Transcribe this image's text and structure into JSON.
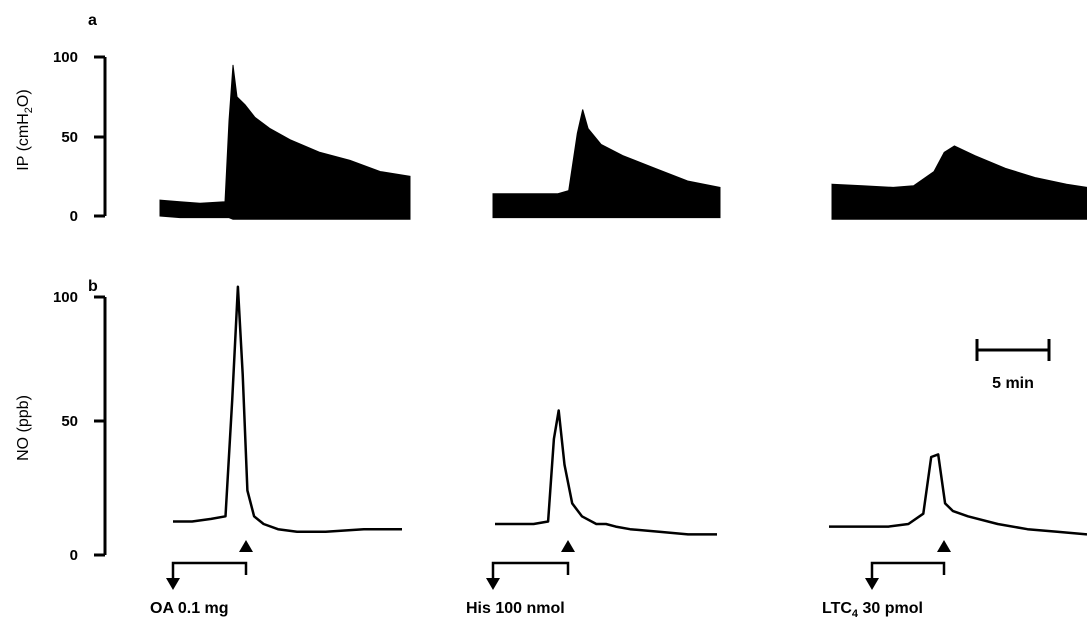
{
  "chart_data": [
    {
      "panel": "a",
      "type": "line",
      "ylabel": "IP (cmH2O)",
      "ylabel_main": "IP (cmH",
      "ylabel_sub": "2",
      "ylabel_end": "O)",
      "ylim": [
        0,
        100
      ],
      "yticks": [
        "0",
        "50",
        "100"
      ],
      "yticks_values": [
        0,
        50,
        100
      ],
      "style": "filled oscillating pressure trace",
      "series": [
        {
          "challenge": "OA 0.1 mg",
          "x": [
            0,
            2,
            4,
            6.5,
            6.9,
            7.3,
            7.7,
            8.5,
            9.5,
            11,
            13,
            16,
            19,
            22,
            25
          ],
          "upper": [
            10,
            9,
            8,
            9,
            60,
            95,
            75,
            70,
            62,
            55,
            48,
            40,
            35,
            28,
            25
          ],
          "lower": [
            0,
            -1,
            -1,
            -1,
            -1,
            -2,
            -2,
            -2,
            -2,
            -2,
            -2,
            -2,
            -2,
            -2,
            -2
          ]
        },
        {
          "challenge": "His 100 nmol",
          "x": [
            0,
            3,
            6,
            7,
            7.8,
            8.3,
            8.8,
            10,
            12,
            15,
            18,
            21
          ],
          "upper": [
            14,
            14,
            14,
            16,
            52,
            67,
            55,
            45,
            38,
            30,
            22,
            18
          ],
          "lower": [
            -1,
            -1,
            -1,
            -1,
            -1,
            -1,
            -1,
            -1,
            -1,
            -1,
            -1,
            -1
          ]
        },
        {
          "challenge": "LTC4 30 pmol",
          "x": [
            0,
            3,
            6,
            8,
            10,
            11,
            12,
            14,
            17,
            20,
            23,
            25
          ],
          "upper": [
            20,
            19,
            18,
            19,
            28,
            40,
            44,
            38,
            30,
            24,
            20,
            18
          ],
          "lower": [
            -2,
            -2,
            -2,
            -2,
            -2,
            -2,
            -2,
            -2,
            -2,
            -2,
            -2,
            -2
          ]
        }
      ]
    },
    {
      "panel": "b",
      "type": "line",
      "ylabel": "NO (ppb)",
      "ylim": [
        0,
        100
      ],
      "yticks": [
        "0",
        "50",
        "100"
      ],
      "yticks_values": [
        0,
        50,
        100
      ],
      "scale_bar": "5 min",
      "series": [
        {
          "challenge": "OA 0.1 mg",
          "x": [
            0,
            2,
            4,
            5.5,
            6.2,
            6.8,
            7.3,
            7.8,
            8.5,
            9.5,
            11,
            13,
            16,
            20,
            24
          ],
          "y": [
            13,
            13,
            14,
            15,
            60,
            104,
            70,
            25,
            15,
            12,
            10,
            9,
            9,
            10,
            10
          ]
        },
        {
          "challenge": "His 100 nmol",
          "x": [
            0,
            2,
            4,
            5.5,
            6.1,
            6.6,
            7.2,
            8,
            9,
            10.5,
            11.5,
            12.5,
            14,
            17,
            20,
            23
          ],
          "y": [
            12,
            12,
            12,
            13,
            45,
            56,
            35,
            20,
            15,
            12,
            12,
            11,
            10,
            9,
            8,
            8
          ]
        },
        {
          "challenge": "LTC4 30 pmol",
          "x": [
            0,
            3,
            6,
            8,
            9.5,
            10.3,
            11,
            11.7,
            12.5,
            14,
            17,
            20,
            23,
            26
          ],
          "y": [
            11,
            11,
            11,
            12,
            16,
            38,
            39,
            20,
            17,
            15,
            12,
            10,
            9,
            8
          ]
        }
      ]
    }
  ],
  "challenges": [
    {
      "label": "OA 0.1 mg",
      "main": "OA 0.1 mg",
      "sub": "",
      "rest": ""
    },
    {
      "label": "His 100 nmol",
      "main": "His 100 nmol",
      "sub": "",
      "rest": ""
    },
    {
      "label": "LTC4 30 pmol",
      "main": "LTC",
      "sub": "4",
      "rest": " 30 pmol"
    }
  ]
}
